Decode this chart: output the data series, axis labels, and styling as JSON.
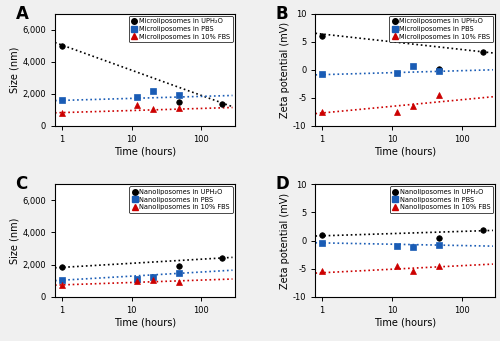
{
  "panel_A": {
    "title": "A",
    "ylabel": "Size (nm)",
    "xlabel": "Time (hours)",
    "ylim": [
      0,
      7000
    ],
    "yticks": [
      0,
      2000,
      4000,
      6000
    ],
    "ytick_labels": [
      "0",
      "2,000",
      "4,000",
      "6,000"
    ],
    "xlim": [
      0.8,
      300
    ],
    "series": [
      {
        "label": "Microliposomes in UPH₂O",
        "color": "black",
        "marker": "o",
        "x": [
          1,
          48,
          200
        ],
        "y": [
          5000,
          1500,
          1350
        ],
        "trend_x": [
          0.8,
          280
        ],
        "trend_y": [
          5200,
          1200
        ],
        "linestyle": ":"
      },
      {
        "label": "Microliposomes in PBS",
        "color": "#1a5cb5",
        "marker": "s",
        "x": [
          1,
          12,
          20,
          48
        ],
        "y": [
          1600,
          1800,
          2200,
          1900
        ],
        "trend_x": [
          0.8,
          280
        ],
        "trend_y": [
          1580,
          1900
        ],
        "linestyle": ":"
      },
      {
        "label": "Microliposomes in 10% FBS",
        "color": "#cc0000",
        "marker": "^",
        "x": [
          1,
          12,
          20,
          48
        ],
        "y": [
          800,
          1300,
          1050,
          1100
        ],
        "trend_x": [
          0.8,
          280
        ],
        "trend_y": [
          820,
          1150
        ],
        "linestyle": ":"
      }
    ]
  },
  "panel_B": {
    "title": "B",
    "ylabel": "Zeta potential (mV)",
    "xlabel": "Time (hours)",
    "ylim": [
      -10,
      10
    ],
    "yticks": [
      -10,
      -5,
      0,
      5,
      10
    ],
    "ytick_labels": [
      "-10",
      "-5",
      "0",
      "5",
      "10"
    ],
    "xlim": [
      0.8,
      300
    ],
    "series": [
      {
        "label": "Microliposomes in UPH₂O",
        "color": "black",
        "marker": "o",
        "x": [
          1,
          48,
          200
        ],
        "y": [
          6.0,
          0.2,
          3.2
        ],
        "trend_x": [
          0.8,
          280
        ],
        "trend_y": [
          6.5,
          3.0
        ],
        "linestyle": ":"
      },
      {
        "label": "Microliposomes in PBS",
        "color": "#1a5cb5",
        "marker": "s",
        "x": [
          1,
          12,
          20,
          48
        ],
        "y": [
          -0.8,
          -0.5,
          0.7,
          -0.3
        ],
        "trend_x": [
          0.8,
          280
        ],
        "trend_y": [
          -0.9,
          0.0
        ],
        "linestyle": ":"
      },
      {
        "label": "Microliposomes in 10% FBS",
        "color": "#cc0000",
        "marker": "^",
        "x": [
          1,
          12,
          20,
          48
        ],
        "y": [
          -7.5,
          -7.5,
          -6.5,
          -4.5
        ],
        "trend_x": [
          0.8,
          280
        ],
        "trend_y": [
          -7.8,
          -4.8
        ],
        "linestyle": ":"
      }
    ]
  },
  "panel_C": {
    "title": "C",
    "ylabel": "Size (nm)",
    "xlabel": "Time (hours)",
    "ylim": [
      0,
      7000
    ],
    "yticks": [
      0,
      2000,
      4000,
      6000
    ],
    "ytick_labels": [
      "0",
      "2,000",
      "4,000",
      "6,000"
    ],
    "xlim": [
      0.8,
      300
    ],
    "series": [
      {
        "label": "Nanoliposomes in UPH₂O",
        "color": "black",
        "marker": "o",
        "x": [
          1,
          48,
          200
        ],
        "y": [
          1850,
          1900,
          2400
        ],
        "trend_x": [
          0.8,
          280
        ],
        "trend_y": [
          1800,
          2450
        ],
        "linestyle": ":"
      },
      {
        "label": "Nanoliposomes in PBS",
        "color": "#1a5cb5",
        "marker": "s",
        "x": [
          1,
          12,
          20,
          48
        ],
        "y": [
          1050,
          1100,
          1200,
          1500
        ],
        "trend_x": [
          0.8,
          280
        ],
        "trend_y": [
          1000,
          1650
        ],
        "linestyle": ":"
      },
      {
        "label": "Nanoliposomes in 10% FBS",
        "color": "#cc0000",
        "marker": "^",
        "x": [
          1,
          12,
          20,
          48
        ],
        "y": [
          700,
          1000,
          1050,
          900
        ],
        "trend_x": [
          0.8,
          280
        ],
        "trend_y": [
          720,
          1100
        ],
        "linestyle": ":"
      }
    ]
  },
  "panel_D": {
    "title": "D",
    "ylabel": "Zeta potential (mV)",
    "xlabel": "Time (hours)",
    "ylim": [
      -10,
      10
    ],
    "yticks": [
      -10,
      -5,
      0,
      5,
      10
    ],
    "ytick_labels": [
      "-10",
      "-5",
      "0",
      "5",
      "10"
    ],
    "xlim": [
      0.8,
      300
    ],
    "series": [
      {
        "label": "Nanoliposomes in UPH₂O",
        "color": "black",
        "marker": "o",
        "x": [
          1,
          48,
          200
        ],
        "y": [
          1.0,
          0.5,
          1.8
        ],
        "trend_x": [
          0.8,
          280
        ],
        "trend_y": [
          0.8,
          1.8
        ],
        "linestyle": ":"
      },
      {
        "label": "Nanoliposomes in PBS",
        "color": "#1a5cb5",
        "marker": "s",
        "x": [
          1,
          12,
          20,
          48
        ],
        "y": [
          -0.5,
          -1.0,
          -1.2,
          -0.8
        ],
        "trend_x": [
          0.8,
          280
        ],
        "trend_y": [
          -0.4,
          -1.0
        ],
        "linestyle": ":"
      },
      {
        "label": "Nanoliposomes in 10% FBS",
        "color": "#cc0000",
        "marker": "^",
        "x": [
          1,
          12,
          20,
          48
        ],
        "y": [
          -5.5,
          -4.5,
          -5.5,
          -4.5
        ],
        "trend_x": [
          0.8,
          280
        ],
        "trend_y": [
          -5.8,
          -4.2
        ],
        "linestyle": ":"
      }
    ]
  },
  "fig_bg": "#f0f0f0",
  "ax_bg": "white"
}
